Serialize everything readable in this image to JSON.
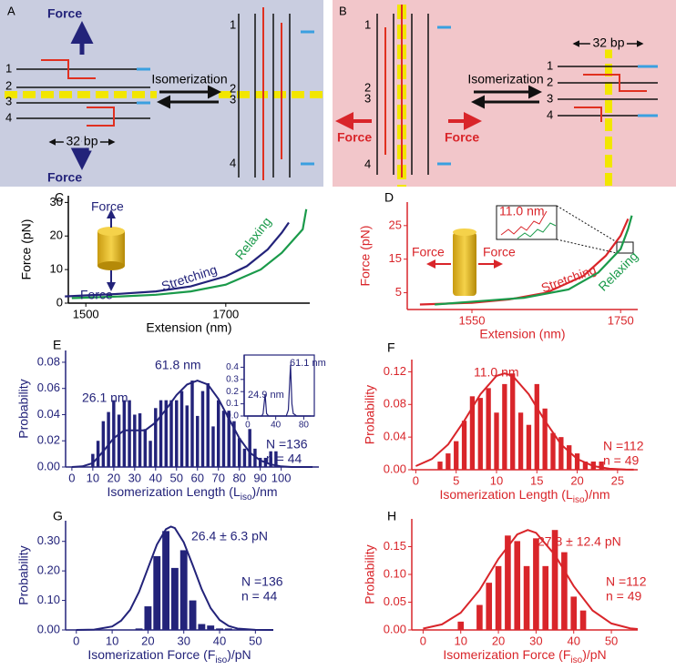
{
  "diagrams": [
    {
      "label": "A",
      "force_top": "Force",
      "force_bottom": "Force",
      "arrow_text": "Isomerization",
      "spacing": "32 bp",
      "left_strands": [
        "1",
        "2",
        "3",
        "4"
      ],
      "right_strands": [
        "1",
        "2",
        "3",
        "4"
      ]
    },
    {
      "label": "B",
      "force_left": "Force",
      "force_right": "Force",
      "arrow_text": "Isomerization",
      "spacing": "32 bp",
      "left_strands": [
        "1",
        "2",
        "3",
        "4"
      ],
      "right_strands": [
        "1",
        "2",
        "3",
        "4"
      ]
    }
  ],
  "chart_data": [
    {
      "type": "line",
      "panel": "C",
      "xlabel": "Extension (nm)",
      "ylabel": "Force (pN)",
      "axis_color": "#000000",
      "xlim": [
        1475,
        1820
      ],
      "ylim": [
        0,
        32
      ],
      "xticks": [
        1500,
        1700
      ],
      "yticks": [
        0,
        10,
        20,
        30
      ],
      "annotations": [
        "Force",
        "Force"
      ],
      "series": [
        {
          "name": "Stretching",
          "color": "#23237a",
          "x": [
            1470,
            1500,
            1550,
            1600,
            1650,
            1700,
            1730,
            1760,
            1780,
            1790
          ],
          "values": [
            2,
            2.3,
            2.8,
            3.5,
            5,
            8,
            11,
            16,
            21,
            24
          ]
        },
        {
          "name": "Relaxing",
          "color": "#1a9a4a",
          "x": [
            1480,
            1550,
            1600,
            1650,
            1700,
            1750,
            1780,
            1810,
            1815
          ],
          "values": [
            1.5,
            2,
            2.5,
            3.5,
            5.5,
            10,
            15,
            22,
            28
          ]
        }
      ]
    },
    {
      "type": "line",
      "panel": "D",
      "xlabel": "Extension (nm)",
      "ylabel": "Force (pN)",
      "axis_color": "#d9252a",
      "xlim": [
        1463,
        1773
      ],
      "ylim": [
        0,
        32
      ],
      "xticks": [
        1550,
        1750
      ],
      "yticks": [
        5,
        15,
        25
      ],
      "annotations": [
        "11.0 nm",
        "Force",
        "Force"
      ],
      "series": [
        {
          "name": "Stretching",
          "color": "#d9252a",
          "x": [
            1480,
            1550,
            1600,
            1650,
            1700,
            1730,
            1750,
            1760
          ],
          "values": [
            1.5,
            2,
            3,
            5,
            10,
            16,
            22,
            27
          ]
        },
        {
          "name": "Relaxing",
          "color": "#1a9a4a",
          "x": [
            1500,
            1560,
            1620,
            1680,
            1720,
            1750,
            1760,
            1765
          ],
          "values": [
            1.5,
            2.5,
            3.5,
            6,
            11,
            18,
            24,
            28
          ]
        }
      ]
    },
    {
      "type": "bar",
      "panel": "E",
      "xlabel": [
        "Isomerization Length (L",
        "iso",
        ")/nm"
      ],
      "ylabel": "Probability",
      "axis_color": "#23237a",
      "color": "#23237a",
      "xlim": [
        -3,
        118
      ],
      "ylim": [
        0,
        0.089
      ],
      "xticks": [
        0,
        10,
        20,
        30,
        40,
        50,
        60,
        70,
        80,
        90,
        100
      ],
      "yticks": [
        {
          "value": 0,
          "label": "0.00"
        },
        {
          "value": 0.02,
          "label": "0.02"
        },
        {
          "value": 0.04,
          "label": "0.04"
        },
        {
          "value": 0.06,
          "label": "0.06"
        },
        {
          "value": 0.08,
          "label": "0.08"
        }
      ],
      "annotations": [
        "26.1 nm",
        "61.8 nm"
      ],
      "stats": [
        "N =136",
        "n = 44"
      ],
      "x": [
        10,
        12.5,
        15,
        17.5,
        20,
        22.5,
        25,
        27.5,
        30,
        32.5,
        35,
        37.5,
        40,
        42.5,
        45,
        47.5,
        50,
        52.5,
        55,
        57.5,
        60,
        62.5,
        65,
        67.5,
        70,
        72.5,
        75,
        77.5,
        80,
        82.5,
        85,
        87.5,
        90,
        92.5,
        95,
        97.5
      ],
      "values": [
        0.01,
        0.02,
        0.035,
        0.042,
        0.051,
        0.04,
        0.051,
        0.051,
        0.04,
        0.041,
        0.029,
        0.02,
        0.045,
        0.051,
        0.051,
        0.051,
        0.051,
        0.058,
        0.047,
        0.066,
        0.039,
        0.058,
        0.064,
        0.031,
        0.051,
        0.043,
        0.043,
        0.035,
        0.022,
        0.014,
        0.029,
        0.014,
        0.007,
        0.007,
        0.012,
        0.012
      ],
      "fit": {
        "x": [
          0,
          5,
          10,
          15,
          20,
          25,
          30,
          35,
          40,
          45,
          50,
          55,
          60,
          65,
          70,
          75,
          80,
          85,
          90,
          95,
          100,
          105,
          110,
          115
        ],
        "values": [
          0,
          0.0005,
          0.003,
          0.012,
          0.022,
          0.028,
          0.028,
          0.028,
          0.034,
          0.044,
          0.055,
          0.063,
          0.066,
          0.063,
          0.052,
          0.037,
          0.022,
          0.011,
          0.005,
          0.002,
          0.0005,
          0,
          0,
          0
        ]
      }
    },
    {
      "type": "line",
      "panel_inset_of": "E",
      "axis_color": "#23237a",
      "xlim": [
        -5,
        95
      ],
      "ylim": [
        0,
        0.5
      ],
      "xticks": [
        0,
        40,
        80
      ],
      "yticks": [
        {
          "value": 0,
          "label": "0.0"
        },
        {
          "value": 0.1,
          "label": "0.1"
        },
        {
          "value": 0.2,
          "label": "0.2"
        },
        {
          "value": 0.3,
          "label": "0.3"
        },
        {
          "value": 0.4,
          "label": "0.4"
        }
      ],
      "annotations": [
        "24.9 nm",
        "61.1 nm"
      ],
      "series": [
        {
          "color": "#23237a",
          "x": [
            0,
            20,
            22,
            24.9,
            27,
            30,
            55,
            58,
            61.1,
            63,
            65,
            70,
            90
          ],
          "values": [
            0,
            0,
            0.02,
            0.18,
            0.02,
            0,
            0,
            0.05,
            0.42,
            0.1,
            0.02,
            0,
            0
          ]
        }
      ]
    },
    {
      "type": "bar",
      "panel": "F",
      "xlabel": [
        "Isomerization Length (L",
        "iso",
        ")/nm"
      ],
      "ylabel": "Probability",
      "axis_color": "#d9252a",
      "color": "#d9252a",
      "xlim": [
        -0.5,
        27.5
      ],
      "ylim": [
        0,
        0.135
      ],
      "xticks": [
        0,
        5,
        10,
        15,
        20,
        25
      ],
      "yticks": [
        {
          "value": 0,
          "label": "0.00"
        },
        {
          "value": 0.04,
          "label": "0.04"
        },
        {
          "value": 0.08,
          "label": "0.08"
        },
        {
          "value": 0.12,
          "label": "0.12"
        }
      ],
      "annotations": [
        "11.0 nm"
      ],
      "stats": [
        "N =112",
        "n = 49"
      ],
      "x": [
        3,
        4,
        5,
        6,
        7,
        8,
        9,
        10,
        11,
        12,
        13,
        14,
        15,
        16,
        17,
        18,
        19,
        20,
        21,
        22,
        23
      ],
      "values": [
        0.01,
        0.02,
        0.035,
        0.06,
        0.09,
        0.088,
        0.1,
        0.07,
        0.105,
        0.118,
        0.07,
        0.055,
        0.105,
        0.075,
        0.045,
        0.04,
        0.03,
        0.02,
        0.01,
        0.01,
        0.01
      ],
      "fit": {
        "x": [
          0,
          2,
          4,
          6,
          8,
          10,
          11,
          12,
          14,
          16,
          18,
          20,
          22,
          24,
          26,
          27
        ],
        "values": [
          0.0045,
          0.0132,
          0.031,
          0.06,
          0.0925,
          0.115,
          0.118,
          0.115,
          0.0925,
          0.06,
          0.031,
          0.0132,
          0.0045,
          0.0012,
          0.0003,
          0.0001
        ]
      }
    },
    {
      "type": "bar",
      "panel": "G",
      "xlabel": [
        "Isomerization Force (F",
        "iso",
        ")/pN"
      ],
      "ylabel": "Probability",
      "axis_color": "#23237a",
      "color": "#23237a",
      "xlim": [
        -3,
        55
      ],
      "ylim": [
        0,
        0.37
      ],
      "xticks": [
        0,
        10,
        20,
        30,
        40,
        50
      ],
      "yticks": [
        {
          "value": 0,
          "label": "0.00"
        },
        {
          "value": 0.1,
          "label": "0.10"
        },
        {
          "value": 0.2,
          "label": "0.20"
        },
        {
          "value": 0.3,
          "label": "0.30"
        }
      ],
      "annotations": [
        "26.4 ± 6.3 pN"
      ],
      "stats": [
        "N =136",
        "n = 44"
      ],
      "x": [
        17.5,
        20,
        22.5,
        25,
        27.5,
        30,
        32.5,
        35,
        37.5,
        40,
        42.5
      ],
      "values": [
        0.005,
        0.08,
        0.25,
        0.335,
        0.21,
        0.27,
        0.1,
        0.02,
        0.015,
        0.005,
        0.005
      ],
      "fit": {
        "x": [
          0,
          5,
          10,
          12.5,
          15,
          17.5,
          20,
          22.5,
          25,
          26.4,
          27.5,
          30,
          32.5,
          35,
          37.5,
          40,
          42.5,
          45,
          50,
          55
        ],
        "values": [
          0,
          0.0011,
          0.0118,
          0.031,
          0.068,
          0.129,
          0.209,
          0.289,
          0.341,
          0.35,
          0.345,
          0.297,
          0.219,
          0.138,
          0.074,
          0.034,
          0.0135,
          0.0045,
          0.0003,
          0
        ]
      }
    },
    {
      "type": "bar",
      "panel": "H",
      "xlabel": [
        "Isomerization Force (F",
        "iso",
        ")/pN"
      ],
      "ylabel": "Probability",
      "axis_color": "#d9252a",
      "color": "#d9252a",
      "xlim": [
        -3,
        57
      ],
      "ylim": [
        0,
        0.2
      ],
      "xticks": [
        0,
        10,
        20,
        30,
        40,
        50
      ],
      "yticks": [
        {
          "value": 0,
          "label": "0.00"
        },
        {
          "value": 0.05,
          "label": "0.05"
        },
        {
          "value": 0.1,
          "label": "0.10"
        },
        {
          "value": 0.15,
          "label": "0.15"
        }
      ],
      "annotations": [
        "27.8 ± 12.4 pN"
      ],
      "stats": [
        "N =112",
        "n = 49"
      ],
      "x": [
        10,
        15,
        17.5,
        20,
        22.5,
        25,
        27.5,
        30,
        32.5,
        35,
        37.5,
        40,
        42.5
      ],
      "values": [
        0.015,
        0.045,
        0.085,
        0.115,
        0.17,
        0.16,
        0.115,
        0.165,
        0.115,
        0.18,
        0.14,
        0.06,
        0.035
      ],
      "fit": {
        "x": [
          0,
          5,
          10,
          15,
          20,
          25,
          27.8,
          30,
          35,
          40,
          45,
          50,
          55,
          57
        ],
        "values": [
          0.0025,
          0.01,
          0.031,
          0.072,
          0.128,
          0.172,
          0.18,
          0.175,
          0.135,
          0.079,
          0.035,
          0.0116,
          0.003,
          0.0016
        ]
      }
    }
  ]
}
